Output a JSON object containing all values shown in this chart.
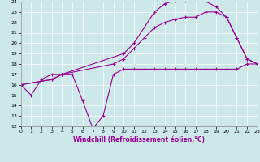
{
  "xlabel": "Windchill (Refroidissement éolien,°C)",
  "bg_color": "#cce8e8",
  "line_color": "#990099",
  "xlim": [
    0,
    23
  ],
  "ylim": [
    12,
    24
  ],
  "xticks": [
    0,
    1,
    2,
    3,
    4,
    5,
    6,
    7,
    8,
    9,
    10,
    11,
    12,
    13,
    14,
    15,
    16,
    17,
    18,
    19,
    20,
    21,
    22,
    23
  ],
  "yticks": [
    12,
    13,
    14,
    15,
    16,
    17,
    18,
    19,
    20,
    21,
    22,
    23,
    24
  ],
  "series": [
    {
      "x": [
        0,
        1,
        2,
        3,
        4,
        5,
        6,
        7,
        8,
        9,
        10,
        11,
        12,
        13,
        14,
        15,
        16,
        17,
        18,
        19,
        20,
        21,
        22,
        23
      ],
      "y": [
        16.0,
        15.0,
        16.5,
        17.0,
        17.0,
        17.0,
        14.5,
        11.8,
        13.0,
        17.0,
        17.5,
        17.5,
        17.5,
        17.5,
        17.5,
        17.5,
        17.5,
        17.5,
        17.5,
        17.5,
        17.5,
        17.5,
        18.0,
        18.0
      ]
    },
    {
      "x": [
        0,
        3,
        4,
        10,
        11,
        12,
        13,
        14,
        15,
        16,
        17,
        18,
        19,
        20,
        21,
        22,
        23
      ],
      "y": [
        16.0,
        16.5,
        17.0,
        19.0,
        20.0,
        21.5,
        23.0,
        23.8,
        24.1,
        24.1,
        24.5,
        24.0,
        23.5,
        22.5,
        20.5,
        18.5,
        18.0
      ]
    },
    {
      "x": [
        0,
        3,
        4,
        9,
        10,
        11,
        12,
        13,
        14,
        15,
        16,
        17,
        18,
        19,
        20,
        21,
        22,
        23
      ],
      "y": [
        16.0,
        16.5,
        17.0,
        18.0,
        18.5,
        19.5,
        20.5,
        21.5,
        22.0,
        22.3,
        22.5,
        22.5,
        23.0,
        23.0,
        22.5,
        20.5,
        18.5,
        18.0
      ]
    }
  ]
}
